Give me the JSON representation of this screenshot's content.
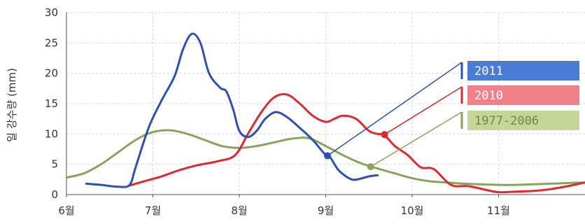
{
  "chart_data": {
    "type": "line",
    "title": "",
    "xlabel": "",
    "ylabel": "일 강수량 (mm)",
    "x_unit": "month",
    "xlim": [
      6,
      12
    ],
    "ylim": [
      0,
      30
    ],
    "grid": true,
    "legend_position": "right",
    "x_tick_labels": [
      "6월",
      "7월",
      "8월",
      "9월",
      "10월",
      "11월"
    ],
    "x_tick_values": [
      6,
      7,
      8,
      9,
      10,
      11
    ],
    "y_ticks": [
      0,
      5,
      10,
      15,
      20,
      25,
      30
    ],
    "colors": {
      "2011": "#2e4fb3",
      "2010": "#e0282f",
      "1977-2006": "#8aa35a"
    },
    "legend_fill": {
      "2011": "#4a7bd6",
      "2010": "#f2808a",
      "1977-2006": "#c4d69a"
    },
    "legend_text_color": {
      "2011": "#ffffff",
      "2010": "#ffffff",
      "1977-2006": "#6f8a3a"
    },
    "series": [
      {
        "name": "2011",
        "x": [
          6.23,
          6.4,
          6.6,
          6.73,
          6.8,
          6.95,
          7.1,
          7.25,
          7.35,
          7.45,
          7.55,
          7.65,
          7.78,
          7.85,
          7.93,
          8.0,
          8.1,
          8.2,
          8.3,
          8.42,
          8.55,
          8.7,
          8.85,
          9.0,
          9.05,
          9.15,
          9.3,
          9.42,
          9.5,
          9.6
        ],
        "y": [
          1.8,
          1.6,
          1.3,
          1.6,
          4.5,
          11.0,
          15.5,
          19.5,
          24.0,
          26.5,
          25.0,
          20.0,
          17.6,
          17.0,
          14.0,
          10.5,
          9.5,
          10.5,
          12.5,
          13.6,
          12.8,
          11.0,
          9.0,
          6.5,
          6.2,
          4.0,
          2.5,
          2.7,
          3.0,
          3.2
        ]
      },
      {
        "name": "2010",
        "x": [
          6.73,
          6.9,
          7.1,
          7.3,
          7.5,
          7.75,
          7.95,
          8.1,
          8.25,
          8.4,
          8.55,
          8.7,
          8.85,
          9.0,
          9.1,
          9.2,
          9.35,
          9.5,
          9.6,
          9.68,
          9.8,
          9.95,
          10.1,
          10.25,
          10.45,
          10.65,
          10.85,
          11.0,
          11.2,
          11.4,
          11.6,
          11.8,
          12.0
        ],
        "y": [
          1.5,
          2.2,
          3.0,
          4.0,
          4.8,
          5.5,
          6.5,
          10.0,
          13.5,
          16.0,
          16.5,
          15.0,
          13.0,
          12.0,
          12.5,
          13.0,
          12.5,
          10.5,
          10.0,
          9.8,
          8.0,
          6.5,
          4.5,
          4.2,
          1.6,
          1.4,
          0.8,
          0.4,
          0.5,
          0.6,
          0.9,
          1.4,
          2.0
        ]
      },
      {
        "name": "1977-2006",
        "x": [
          6.0,
          6.2,
          6.4,
          6.6,
          6.8,
          7.0,
          7.2,
          7.4,
          7.6,
          7.8,
          8.0,
          8.2,
          8.4,
          8.6,
          8.8,
          9.0,
          9.2,
          9.4,
          9.6,
          9.8,
          10.0,
          10.2,
          10.4,
          10.6,
          10.8,
          11.0,
          11.2,
          11.4,
          11.6,
          11.8,
          12.0
        ],
        "y": [
          2.8,
          3.5,
          5.0,
          7.0,
          9.0,
          10.3,
          10.6,
          10.0,
          9.0,
          8.0,
          7.7,
          8.0,
          8.6,
          9.2,
          9.3,
          8.0,
          6.5,
          5.2,
          4.3,
          3.5,
          2.7,
          2.2,
          2.0,
          1.8,
          1.7,
          1.6,
          1.6,
          1.7,
          1.8,
          1.9,
          2.0
        ]
      }
    ],
    "callouts": [
      {
        "series": "2011",
        "point_x": 9.02,
        "point_y": 6.4
      },
      {
        "series": "2010",
        "point_x": 9.68,
        "point_y": 9.9
      },
      {
        "series": "1977-2006",
        "point_x": 9.52,
        "point_y": 4.6
      }
    ]
  }
}
